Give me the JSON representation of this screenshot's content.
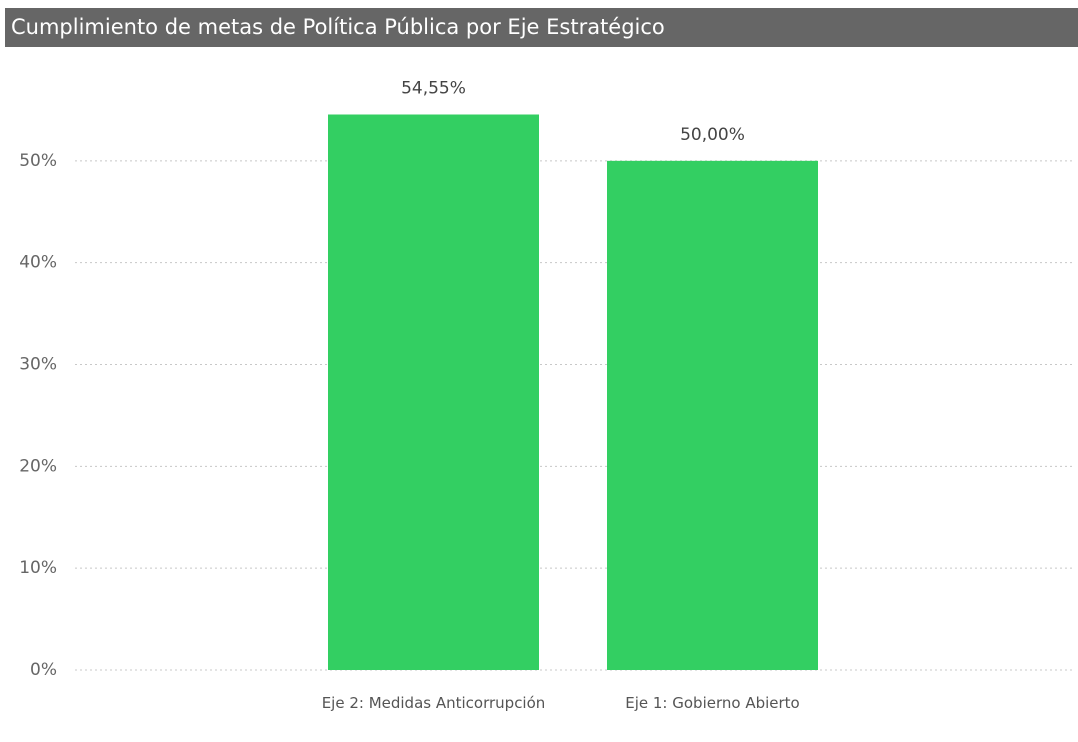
{
  "chart_data": {
    "type": "bar",
    "title": "Cumplimiento de metas de Política Pública por Eje Estratégico",
    "categories": [
      "Eje 2: Medidas Anticorrupción",
      "Eje 1: Gobierno Abierto"
    ],
    "values": [
      54.55,
      50
    ],
    "value_labels": [
      "54,55%",
      "50,00%"
    ],
    "color": "#33cf62",
    "ylim": [
      0,
      60
    ],
    "yticks": [
      {
        "value": 0,
        "label": "0%"
      },
      {
        "value": 10,
        "label": "10%"
      },
      {
        "value": 20,
        "label": "20%"
      },
      {
        "value": 30,
        "label": "30%"
      },
      {
        "value": 40,
        "label": "40%"
      },
      {
        "value": 50,
        "label": "50%"
      }
    ],
    "grid": true
  }
}
